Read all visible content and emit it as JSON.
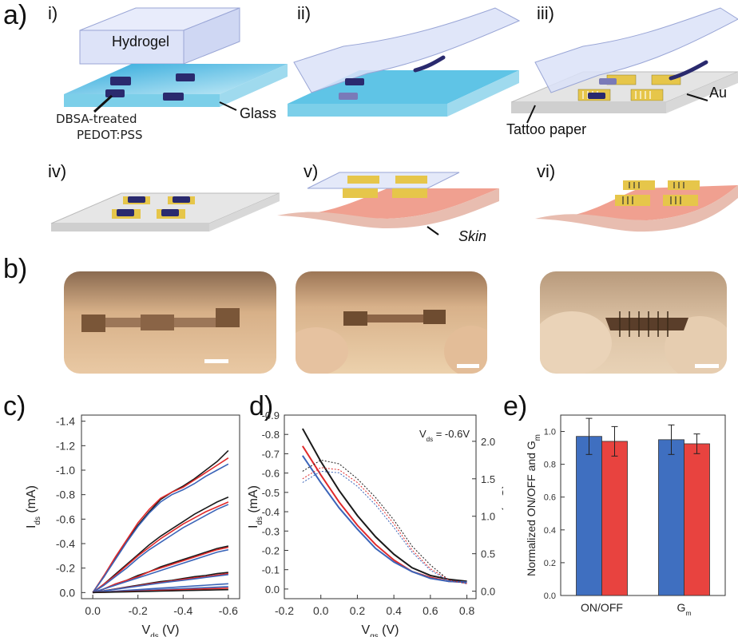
{
  "panels": {
    "a": {
      "letter": "a)",
      "steps": [
        "i)",
        "ii)",
        "iii)",
        "iv)",
        "v)",
        "vi)"
      ],
      "labels": {
        "hydrogel": "Hydrogel",
        "glass": "Glass",
        "pedot_line1": "DBSA-treated",
        "pedot_line2": "PEDOT:PSS",
        "au": "Au",
        "tattoo": "Tattoo paper",
        "skin": "Skin"
      }
    },
    "b": {
      "letter": "b)"
    },
    "c": {
      "letter": "c)"
    },
    "d": {
      "letter": "d)",
      "annotation": "V_ds = -0.6V"
    },
    "e": {
      "letter": "e)"
    }
  },
  "colors": {
    "black": "#1a1a1a",
    "red": "#e0292a",
    "blue": "#3b64b8",
    "bar_blue": "#3f6fc0",
    "bar_red": "#e8433f",
    "glass": "#5bc3e6",
    "pedot": "#2a2a6e",
    "gold": "#e6c64a",
    "skin": "#f0a090",
    "tattoo": "#d9d9d9"
  },
  "chart_data": [
    {
      "id": "c",
      "type": "line",
      "xlabel": "V_ds (V)",
      "ylabel": "I_ds (mA)",
      "xlim": [
        0.05,
        -0.65
      ],
      "ylim": [
        0.05,
        -1.45
      ],
      "xticks": [
        "0.0",
        "-0.2",
        "-0.4",
        "-0.6"
      ],
      "xtick_values": [
        0.0,
        -0.2,
        -0.4,
        -0.6
      ],
      "yticks": [
        "0.0",
        "-0.2",
        "-0.4",
        "-0.6",
        "-0.8",
        "-1.0",
        "-1.2",
        "-1.4"
      ],
      "ytick_values": [
        0.0,
        -0.2,
        -0.4,
        -0.6,
        -0.8,
        -1.0,
        -1.2,
        -1.4
      ],
      "x": [
        0.0,
        -0.05,
        -0.1,
        -0.15,
        -0.2,
        -0.25,
        -0.3,
        -0.35,
        -0.4,
        -0.45,
        -0.5,
        -0.55,
        -0.6
      ],
      "series": [
        {
          "color": "black",
          "values": [
            0,
            -0.13,
            -0.28,
            -0.42,
            -0.55,
            -0.66,
            -0.76,
            -0.82,
            -0.87,
            -0.93,
            -1.0,
            -1.07,
            -1.16
          ]
        },
        {
          "color": "red",
          "values": [
            0,
            -0.14,
            -0.29,
            -0.43,
            -0.57,
            -0.68,
            -0.77,
            -0.82,
            -0.86,
            -0.92,
            -0.98,
            -1.04,
            -1.1
          ]
        },
        {
          "color": "blue",
          "values": [
            0,
            -0.13,
            -0.27,
            -0.41,
            -0.54,
            -0.65,
            -0.74,
            -0.8,
            -0.84,
            -0.89,
            -0.95,
            -1.0,
            -1.05
          ]
        },
        {
          "color": "black",
          "values": [
            0,
            -0.07,
            -0.15,
            -0.23,
            -0.31,
            -0.39,
            -0.46,
            -0.52,
            -0.58,
            -0.64,
            -0.69,
            -0.74,
            -0.78
          ]
        },
        {
          "color": "red",
          "values": [
            0,
            -0.07,
            -0.14,
            -0.22,
            -0.3,
            -0.37,
            -0.44,
            -0.5,
            -0.56,
            -0.61,
            -0.66,
            -0.7,
            -0.74
          ]
        },
        {
          "color": "blue",
          "values": [
            0,
            -0.06,
            -0.13,
            -0.2,
            -0.28,
            -0.35,
            -0.41,
            -0.47,
            -0.53,
            -0.58,
            -0.63,
            -0.68,
            -0.72
          ]
        },
        {
          "color": "black",
          "values": [
            0,
            -0.03,
            -0.07,
            -0.1,
            -0.14,
            -0.17,
            -0.21,
            -0.24,
            -0.27,
            -0.3,
            -0.33,
            -0.36,
            -0.38
          ]
        },
        {
          "color": "red",
          "values": [
            0,
            -0.03,
            -0.07,
            -0.1,
            -0.13,
            -0.17,
            -0.2,
            -0.23,
            -0.26,
            -0.29,
            -0.32,
            -0.35,
            -0.37
          ]
        },
        {
          "color": "blue",
          "values": [
            0,
            -0.03,
            -0.06,
            -0.09,
            -0.12,
            -0.15,
            -0.18,
            -0.21,
            -0.24,
            -0.27,
            -0.3,
            -0.33,
            -0.35
          ]
        },
        {
          "color": "black",
          "values": [
            0,
            -0.015,
            -0.03,
            -0.045,
            -0.06,
            -0.075,
            -0.09,
            -0.1,
            -0.115,
            -0.13,
            -0.14,
            -0.155,
            -0.165
          ]
        },
        {
          "color": "red",
          "values": [
            0,
            -0.014,
            -0.028,
            -0.042,
            -0.055,
            -0.07,
            -0.083,
            -0.095,
            -0.108,
            -0.12,
            -0.13,
            -0.143,
            -0.155
          ]
        },
        {
          "color": "blue",
          "values": [
            0,
            -0.013,
            -0.026,
            -0.039,
            -0.052,
            -0.065,
            -0.078,
            -0.09,
            -0.1,
            -0.112,
            -0.124,
            -0.135,
            -0.147
          ]
        },
        {
          "color": "blue",
          "values": [
            0,
            -0.006,
            -0.012,
            -0.018,
            -0.024,
            -0.03,
            -0.036,
            -0.042,
            -0.048,
            -0.054,
            -0.06,
            -0.066,
            -0.072
          ]
        },
        {
          "color": "blue",
          "values": [
            0,
            -0.004,
            -0.008,
            -0.012,
            -0.016,
            -0.02,
            -0.024,
            -0.028,
            -0.032,
            -0.036,
            -0.04,
            -0.044,
            -0.048
          ]
        },
        {
          "color": "red",
          "values": [
            0,
            -0.003,
            -0.006,
            -0.009,
            -0.012,
            -0.015,
            -0.018,
            -0.021,
            -0.024,
            -0.027,
            -0.03,
            -0.033,
            -0.036
          ]
        },
        {
          "color": "black",
          "values": [
            0,
            -0.002,
            -0.004,
            -0.006,
            -0.008,
            -0.01,
            -0.012,
            -0.014,
            -0.016,
            -0.018,
            -0.02,
            -0.022,
            -0.024
          ]
        }
      ]
    },
    {
      "id": "d",
      "type": "line",
      "xlabel": "V_gs (V)",
      "ylabel": "I_ds (mA)",
      "y2label": "g_m (mS)",
      "xlim": [
        -0.2,
        0.85
      ],
      "ylim": [
        0.05,
        -0.9
      ],
      "y2lim": [
        -0.1,
        2.35
      ],
      "xticks": [
        "-0.2",
        "0.0",
        "0.2",
        "0.4",
        "0.6",
        "0.8"
      ],
      "xtick_values": [
        -0.2,
        0.0,
        0.2,
        0.4,
        0.6,
        0.8
      ],
      "yticks": [
        "0.0",
        "-0.1",
        "-0.2",
        "-0.3",
        "-0.4",
        "-0.5",
        "-0.6",
        "-0.7",
        "-0.8",
        "-0.9"
      ],
      "ytick_values": [
        0.0,
        -0.1,
        -0.2,
        -0.3,
        -0.4,
        -0.5,
        -0.6,
        -0.7,
        -0.8,
        -0.9
      ],
      "y2ticks": [
        "0.0",
        "0.5",
        "1.0",
        "1.5",
        "2.0"
      ],
      "y2tick_values": [
        0.0,
        0.5,
        1.0,
        1.5,
        2.0
      ],
      "x": [
        -0.1,
        0.0,
        0.1,
        0.2,
        0.3,
        0.4,
        0.5,
        0.6,
        0.7,
        0.8
      ],
      "series": [
        {
          "color": "black",
          "values": [
            -0.83,
            -0.66,
            -0.51,
            -0.38,
            -0.27,
            -0.18,
            -0.11,
            -0.07,
            -0.05,
            -0.04
          ]
        },
        {
          "color": "red",
          "values": [
            -0.74,
            -0.59,
            -0.45,
            -0.33,
            -0.23,
            -0.15,
            -0.09,
            -0.06,
            -0.04,
            -0.035
          ]
        },
        {
          "color": "blue",
          "values": [
            -0.69,
            -0.55,
            -0.42,
            -0.31,
            -0.21,
            -0.14,
            -0.09,
            -0.055,
            -0.04,
            -0.035
          ]
        }
      ],
      "series_gm": [
        {
          "color": "black",
          "values": [
            1.6,
            1.75,
            1.7,
            1.5,
            1.25,
            0.95,
            0.6,
            0.35,
            0.15,
            0.1
          ]
        },
        {
          "color": "red",
          "values": [
            1.5,
            1.65,
            1.62,
            1.45,
            1.2,
            0.9,
            0.55,
            0.3,
            0.15,
            0.1
          ]
        },
        {
          "color": "blue",
          "values": [
            1.45,
            1.6,
            1.58,
            1.4,
            1.15,
            0.85,
            0.52,
            0.28,
            0.14,
            0.1
          ]
        }
      ]
    },
    {
      "id": "e",
      "type": "bar",
      "ylabel": "Normalized ON/OFF and G_m",
      "ylim": [
        0.0,
        1.1
      ],
      "yticks": [
        "0.0",
        "0.2",
        "0.4",
        "0.6",
        "0.8",
        "1.0"
      ],
      "ytick_values": [
        0.0,
        0.2,
        0.4,
        0.6,
        0.8,
        1.0
      ],
      "categories": [
        "ON/OFF",
        "G_m"
      ],
      "series": [
        {
          "color": "bar_blue",
          "values": [
            0.97,
            0.95
          ],
          "errors": [
            0.11,
            0.09
          ]
        },
        {
          "color": "bar_red",
          "values": [
            0.94,
            0.925
          ],
          "errors": [
            0.09,
            0.06
          ]
        }
      ]
    }
  ]
}
